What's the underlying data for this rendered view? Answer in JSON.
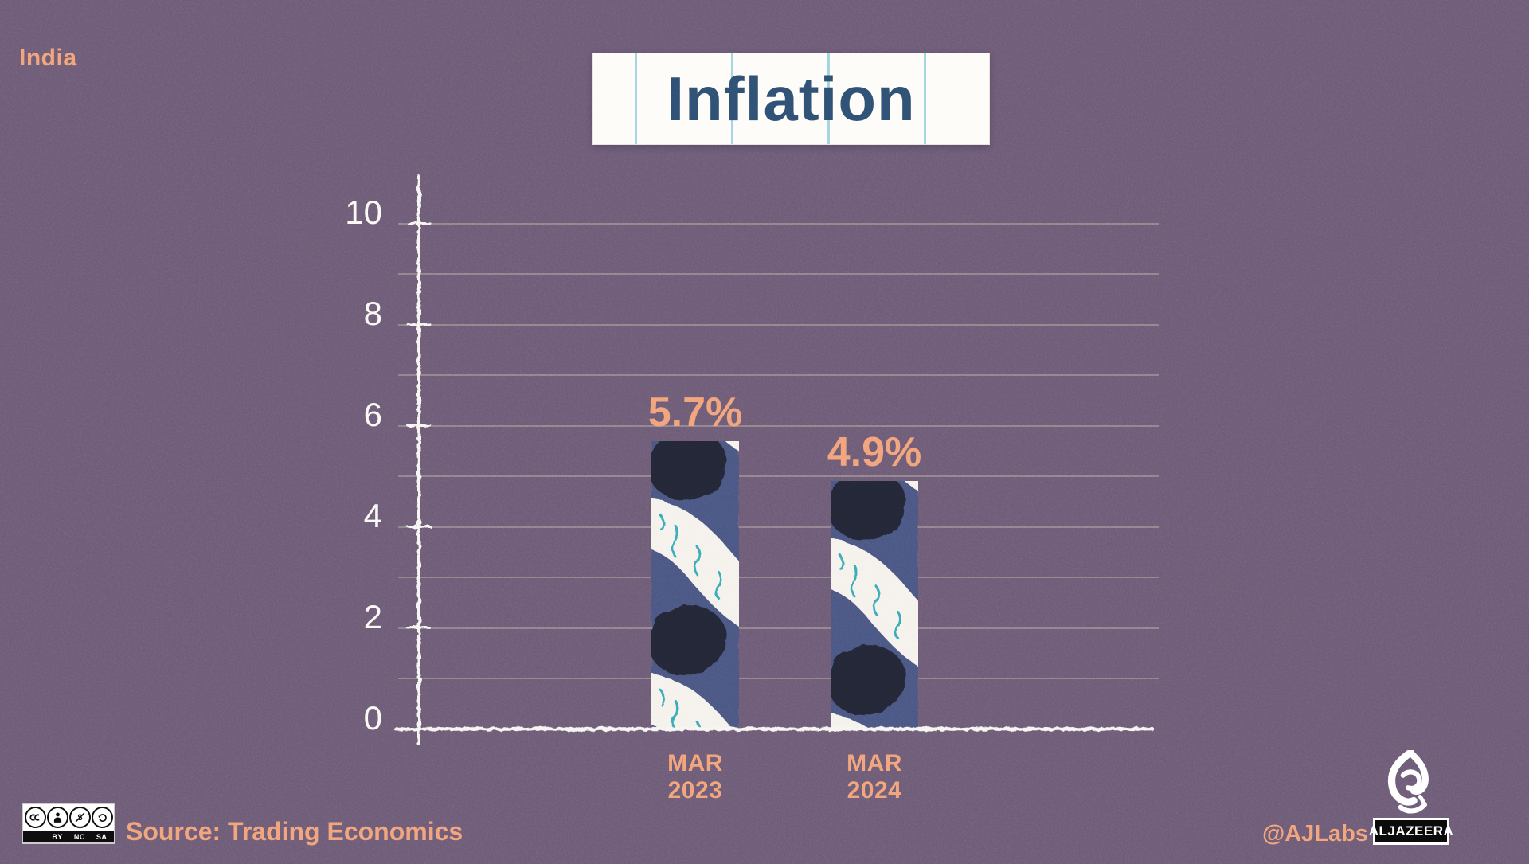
{
  "header": {
    "country": "India"
  },
  "chart_data": {
    "type": "bar",
    "title": "Inflation",
    "categories": [
      "MAR 2023",
      "MAR 2024"
    ],
    "categories_lines": [
      [
        "MAR",
        "2023"
      ],
      [
        "MAR",
        "2024"
      ]
    ],
    "values": [
      5.7,
      4.9
    ],
    "value_labels": [
      "5.7%",
      "4.9%"
    ],
    "ylim": [
      0,
      10
    ],
    "yticks": [
      0,
      2,
      4,
      6,
      8,
      10
    ],
    "grid": {
      "horizontal": true,
      "interval": 1
    },
    "legend_position": "none",
    "xlabel": "",
    "ylabel": "",
    "bar_style": "hand-drawn navy bar with white spiral ribbon, teal scribbles and dark blobs"
  },
  "footer": {
    "license": {
      "name": "cc-by-nc-sa",
      "labels": [
        "BY",
        "NC",
        "SA"
      ]
    },
    "source": "Source: Trading Economics",
    "credit": "@AJLabs",
    "brand_wordmark": "ALJAZEERA"
  },
  "icons": [
    "cc-circle-icon",
    "attribution-person-icon",
    "non-commercial-dollar-icon",
    "share-alike-arrow-icon",
    "al-jazeera-flame-logo"
  ],
  "colors": {
    "background": "#6b5a74",
    "accent_orange": "#f2a077",
    "title_blue": "#2d4e70",
    "bar_navy": "#4a5480",
    "bar_blob_dark": "#242836",
    "bar_swirl_white": "#f5f2ec",
    "swirl_teal": "#37a9b6",
    "axis_white": "#f7f5f2",
    "gridline": "#cbc6af"
  }
}
